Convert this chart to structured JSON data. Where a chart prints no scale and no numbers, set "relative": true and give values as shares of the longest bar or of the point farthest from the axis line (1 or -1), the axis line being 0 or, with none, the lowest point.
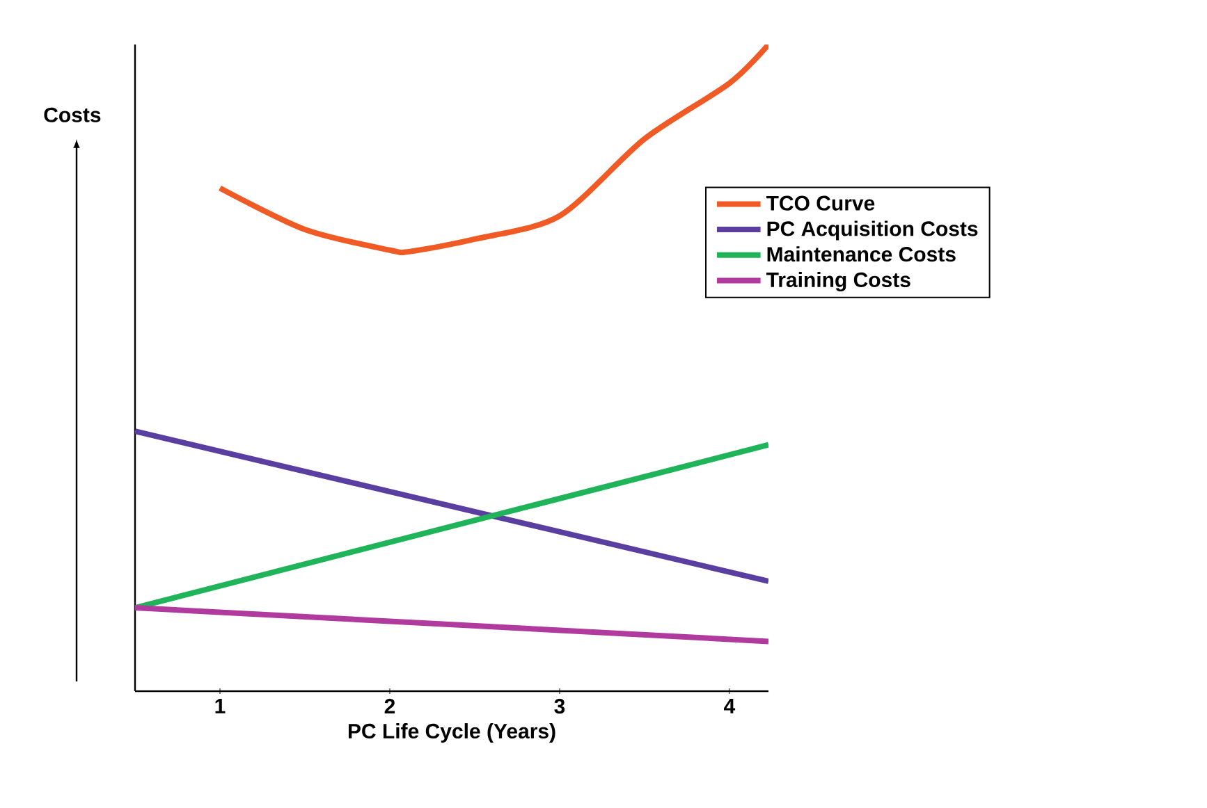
{
  "chart_data": {
    "type": "line",
    "relative": true,
    "xlabel": "PC Life Cycle (Years)",
    "ylabel": "Costs",
    "xlim": [
      0.5,
      4.23
    ],
    "xticks": [
      1,
      2,
      3,
      4
    ],
    "legend": "right",
    "marker": "none",
    "line_style": "solid",
    "series": [
      {
        "name": "TCO Curve",
        "color": "#f05a24",
        "x": [
          1,
          1.5,
          2,
          2.12,
          2.5,
          3,
          3.5,
          4,
          4.23
        ],
        "values": [
          0.778,
          0.714,
          0.682,
          0.68,
          0.699,
          0.735,
          0.854,
          0.94,
          1.0
        ]
      },
      {
        "name": "PC Acquisition Costs",
        "color": "#5b3fa0",
        "x": [
          0.5,
          4.23
        ],
        "values": [
          0.402,
          0.17
        ]
      },
      {
        "name": "Maintenance Costs",
        "color": "#1fb35a",
        "x": [
          0.5,
          4.23
        ],
        "values": [
          0.129,
          0.381
        ]
      },
      {
        "name": "Training Costs",
        "color": "#b03a9e",
        "x": [
          0.5,
          4.23
        ],
        "values": [
          0.129,
          0.077
        ]
      }
    ]
  }
}
